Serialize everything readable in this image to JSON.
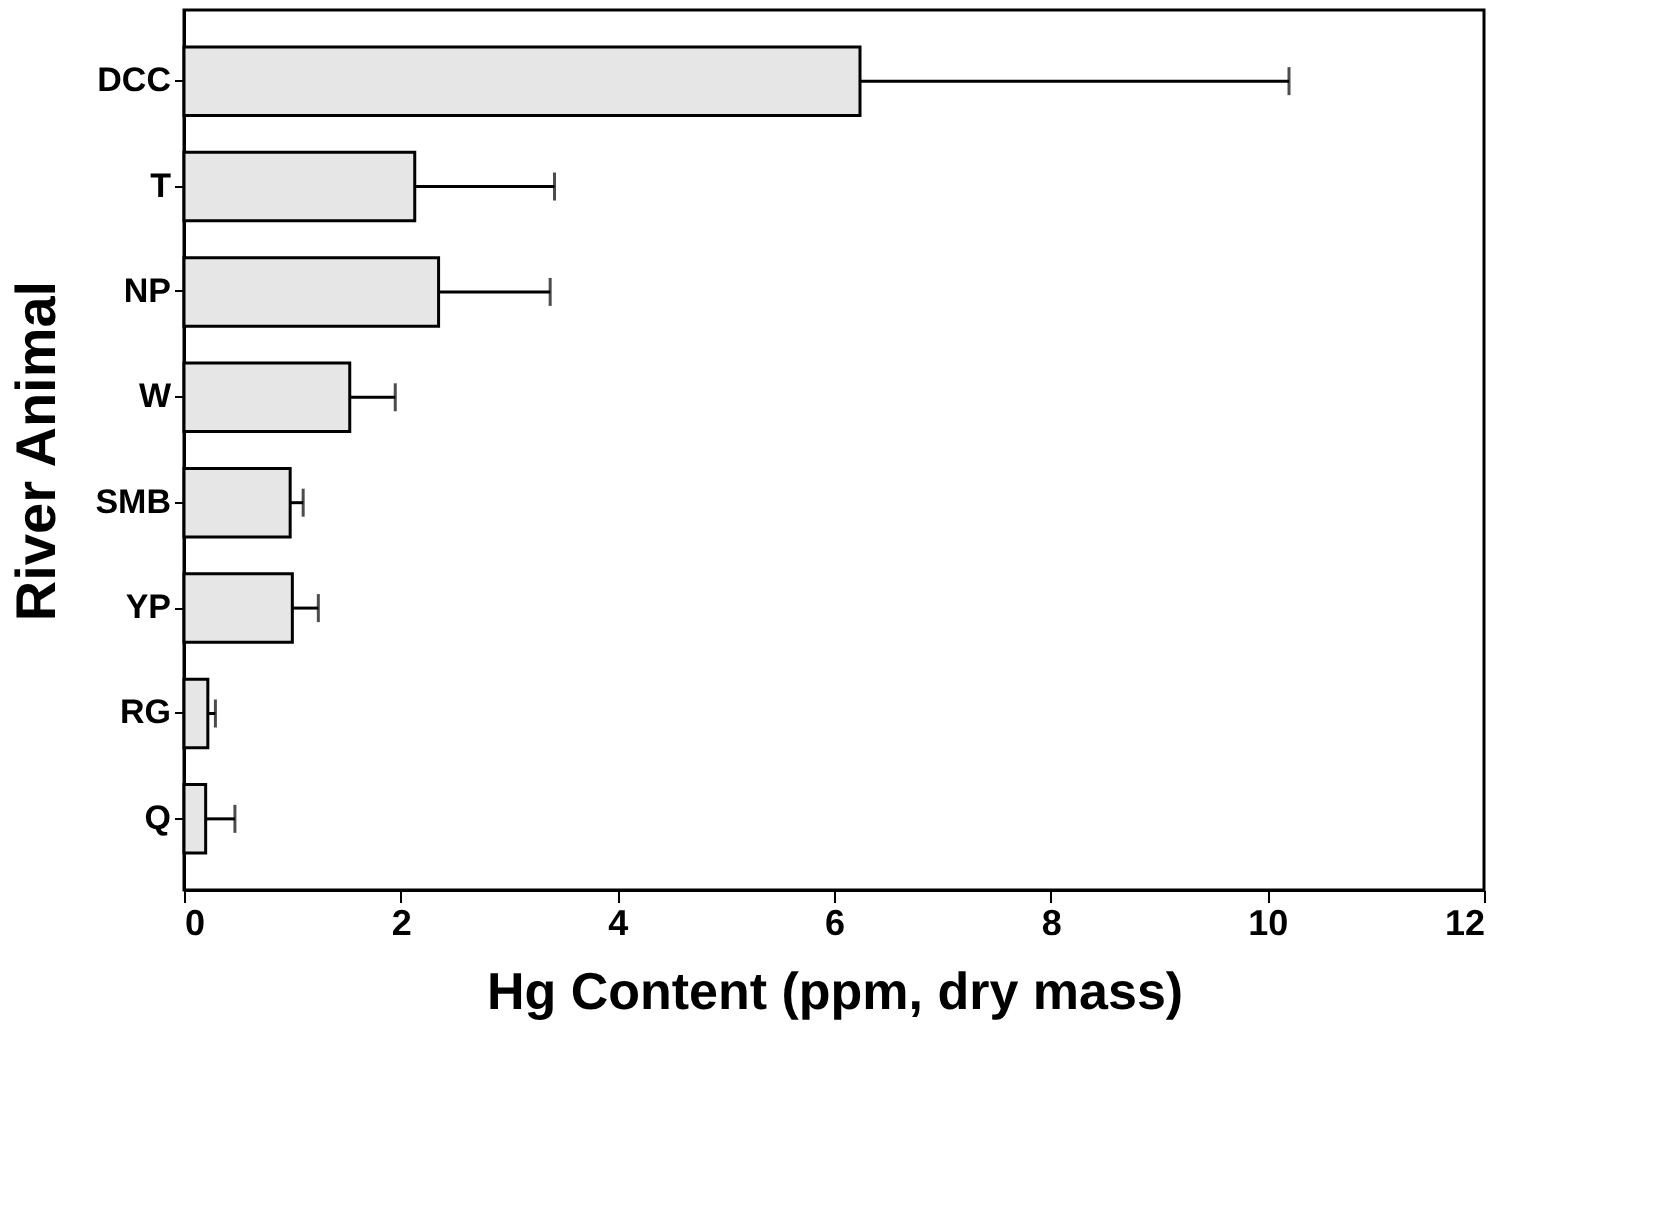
{
  "chart_data": {
    "type": "bar",
    "orientation": "horizontal",
    "xlabel": "Hg Content (ppm, dry mass)",
    "ylabel": "River Animal",
    "categories": [
      "DCC",
      "T",
      "NP",
      "W",
      "SMB",
      "YP",
      "RG",
      "Q"
    ],
    "values": [
      6.24,
      2.13,
      2.35,
      1.53,
      0.98,
      1.0,
      0.22,
      0.2
    ],
    "errors": [
      [
        6.24,
        10.2
      ],
      [
        2.13,
        3.42
      ],
      [
        2.35,
        3.38
      ],
      [
        1.53,
        1.95
      ],
      [
        0.98,
        1.1
      ],
      [
        1.0,
        1.24
      ],
      [
        0.22,
        0.29
      ],
      [
        0.2,
        0.47
      ]
    ],
    "color": "#e6e6e6",
    "xlim": [
      0,
      12
    ],
    "xticks": [
      0,
      2,
      4,
      6,
      8,
      10,
      12
    ],
    "grid": false
  }
}
